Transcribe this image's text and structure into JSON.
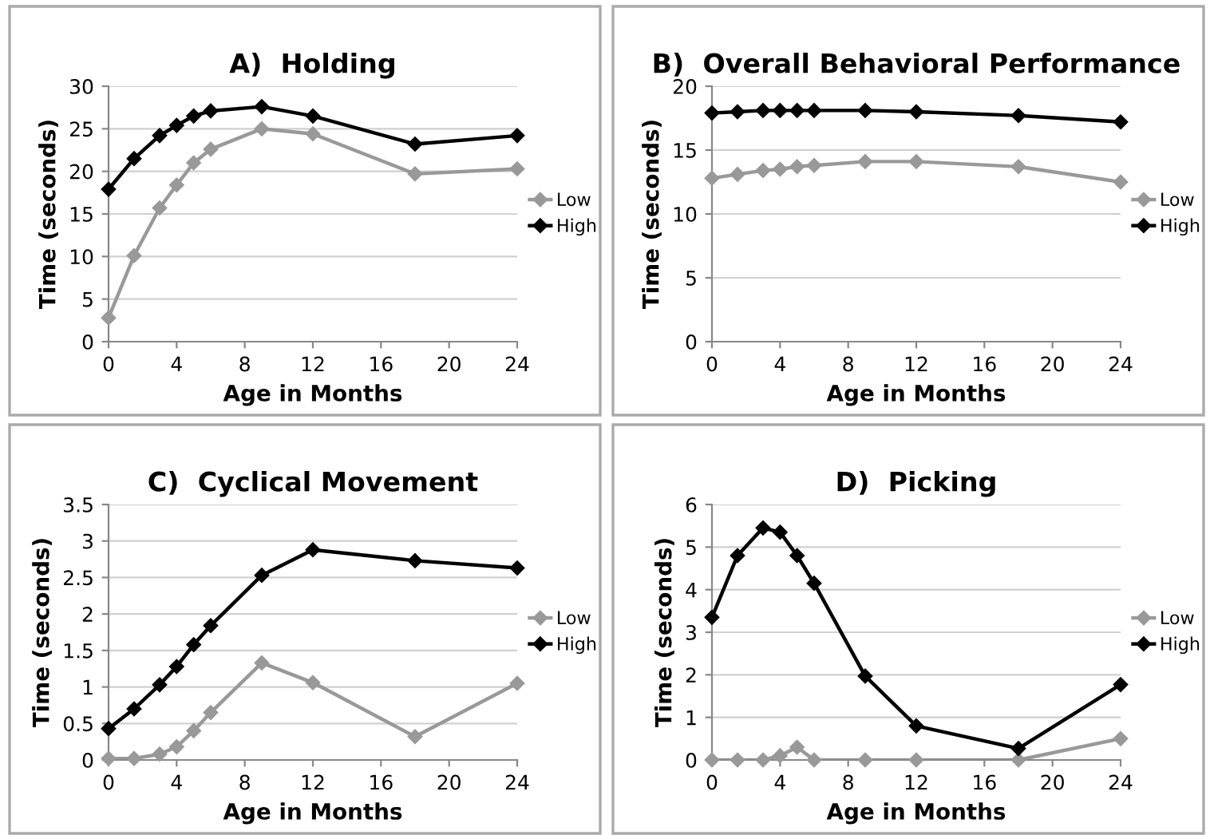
{
  "chart_data": [
    {
      "type": "line",
      "title": "A)  Holding",
      "xlabel": "Age in Months",
      "ylabel": "Time (seconds)",
      "x": [
        0,
        1.5,
        3,
        4,
        5,
        6,
        9,
        12,
        18,
        24
      ],
      "xlim": [
        0,
        24
      ],
      "xticks": [
        0,
        4,
        8,
        12,
        16,
        20,
        24
      ],
      "ylim": [
        0,
        30
      ],
      "yticks": [
        0,
        5,
        10,
        15,
        20,
        25,
        30
      ],
      "grid": "y",
      "legend": "right",
      "marker": "diamond",
      "line_style": "solid",
      "series": [
        {
          "name": "Low",
          "color": "#999999",
          "values": [
            2.8,
            10.1,
            15.7,
            18.4,
            21,
            22.6,
            25,
            24.4,
            19.7,
            20.3
          ]
        },
        {
          "name": "High",
          "color": "#000000",
          "values": [
            17.9,
            21.5,
            24.2,
            25.4,
            26.5,
            27.1,
            27.6,
            26.5,
            23.2,
            24.2
          ]
        }
      ]
    },
    {
      "type": "line",
      "title": "B)  Overall Behavioral Performance",
      "xlabel": "Age in Months",
      "ylabel": "Time (seconds)",
      "x": [
        0,
        1.5,
        3,
        4,
        5,
        6,
        9,
        12,
        18,
        24
      ],
      "xlim": [
        0,
        24
      ],
      "xticks": [
        0,
        4,
        8,
        12,
        16,
        20,
        24
      ],
      "ylim": [
        0,
        20
      ],
      "yticks": [
        0,
        5,
        10,
        15,
        20
      ],
      "grid": "y",
      "legend": "right",
      "marker": "diamond",
      "line_style": "solid",
      "series": [
        {
          "name": "Low",
          "color": "#999999",
          "values": [
            12.8,
            13.1,
            13.4,
            13.5,
            13.7,
            13.8,
            14.1,
            14.1,
            13.7,
            12.5
          ]
        },
        {
          "name": "High",
          "color": "#000000",
          "values": [
            17.9,
            18.0,
            18.1,
            18.1,
            18.1,
            18.1,
            18.1,
            18.0,
            17.7,
            17.2
          ]
        }
      ]
    },
    {
      "type": "line",
      "title": "C)  Cyclical Movement",
      "xlabel": "Age in Months",
      "ylabel": "Time (seconds)",
      "x": [
        0,
        1.5,
        3,
        4,
        5,
        6,
        9,
        12,
        18,
        24
      ],
      "xlim": [
        0,
        24
      ],
      "xticks": [
        0,
        4,
        8,
        12,
        16,
        20,
        24
      ],
      "ylim": [
        0,
        3.5
      ],
      "yticks": [
        0,
        0.5,
        1,
        1.5,
        2,
        2.5,
        3,
        3.5
      ],
      "grid": "y",
      "legend": "right",
      "marker": "diamond",
      "line_style": "solid",
      "series": [
        {
          "name": "Low",
          "color": "#999999",
          "values": [
            0.02,
            0.02,
            0.08,
            0.18,
            0.4,
            0.65,
            1.33,
            1.06,
            0.32,
            1.05
          ]
        },
        {
          "name": "High",
          "color": "#000000",
          "values": [
            0.43,
            0.7,
            1.03,
            1.28,
            1.58,
            1.84,
            2.53,
            2.88,
            2.73,
            2.63
          ]
        }
      ]
    },
    {
      "type": "line",
      "title": "D)  Picking",
      "xlabel": "Age in Months",
      "ylabel": "Time (seconds)",
      "x": [
        0,
        1.5,
        3,
        4,
        5,
        6,
        9,
        12,
        18,
        24
      ],
      "xlim": [
        0,
        24
      ],
      "xticks": [
        0,
        4,
        8,
        12,
        16,
        20,
        24
      ],
      "ylim": [
        0,
        6
      ],
      "yticks": [
        0,
        1,
        2,
        3,
        4,
        5,
        6
      ],
      "grid": "y",
      "legend": "right",
      "marker": "diamond",
      "line_style": "solid",
      "series": [
        {
          "name": "Low",
          "color": "#999999",
          "values": [
            0,
            0,
            0,
            0.1,
            0.3,
            0,
            0,
            0,
            0,
            0.5
          ]
        },
        {
          "name": "High",
          "color": "#000000",
          "values": [
            3.35,
            4.8,
            5.45,
            5.35,
            4.8,
            4.15,
            1.97,
            0.8,
            0.27,
            1.77
          ]
        }
      ]
    }
  ]
}
